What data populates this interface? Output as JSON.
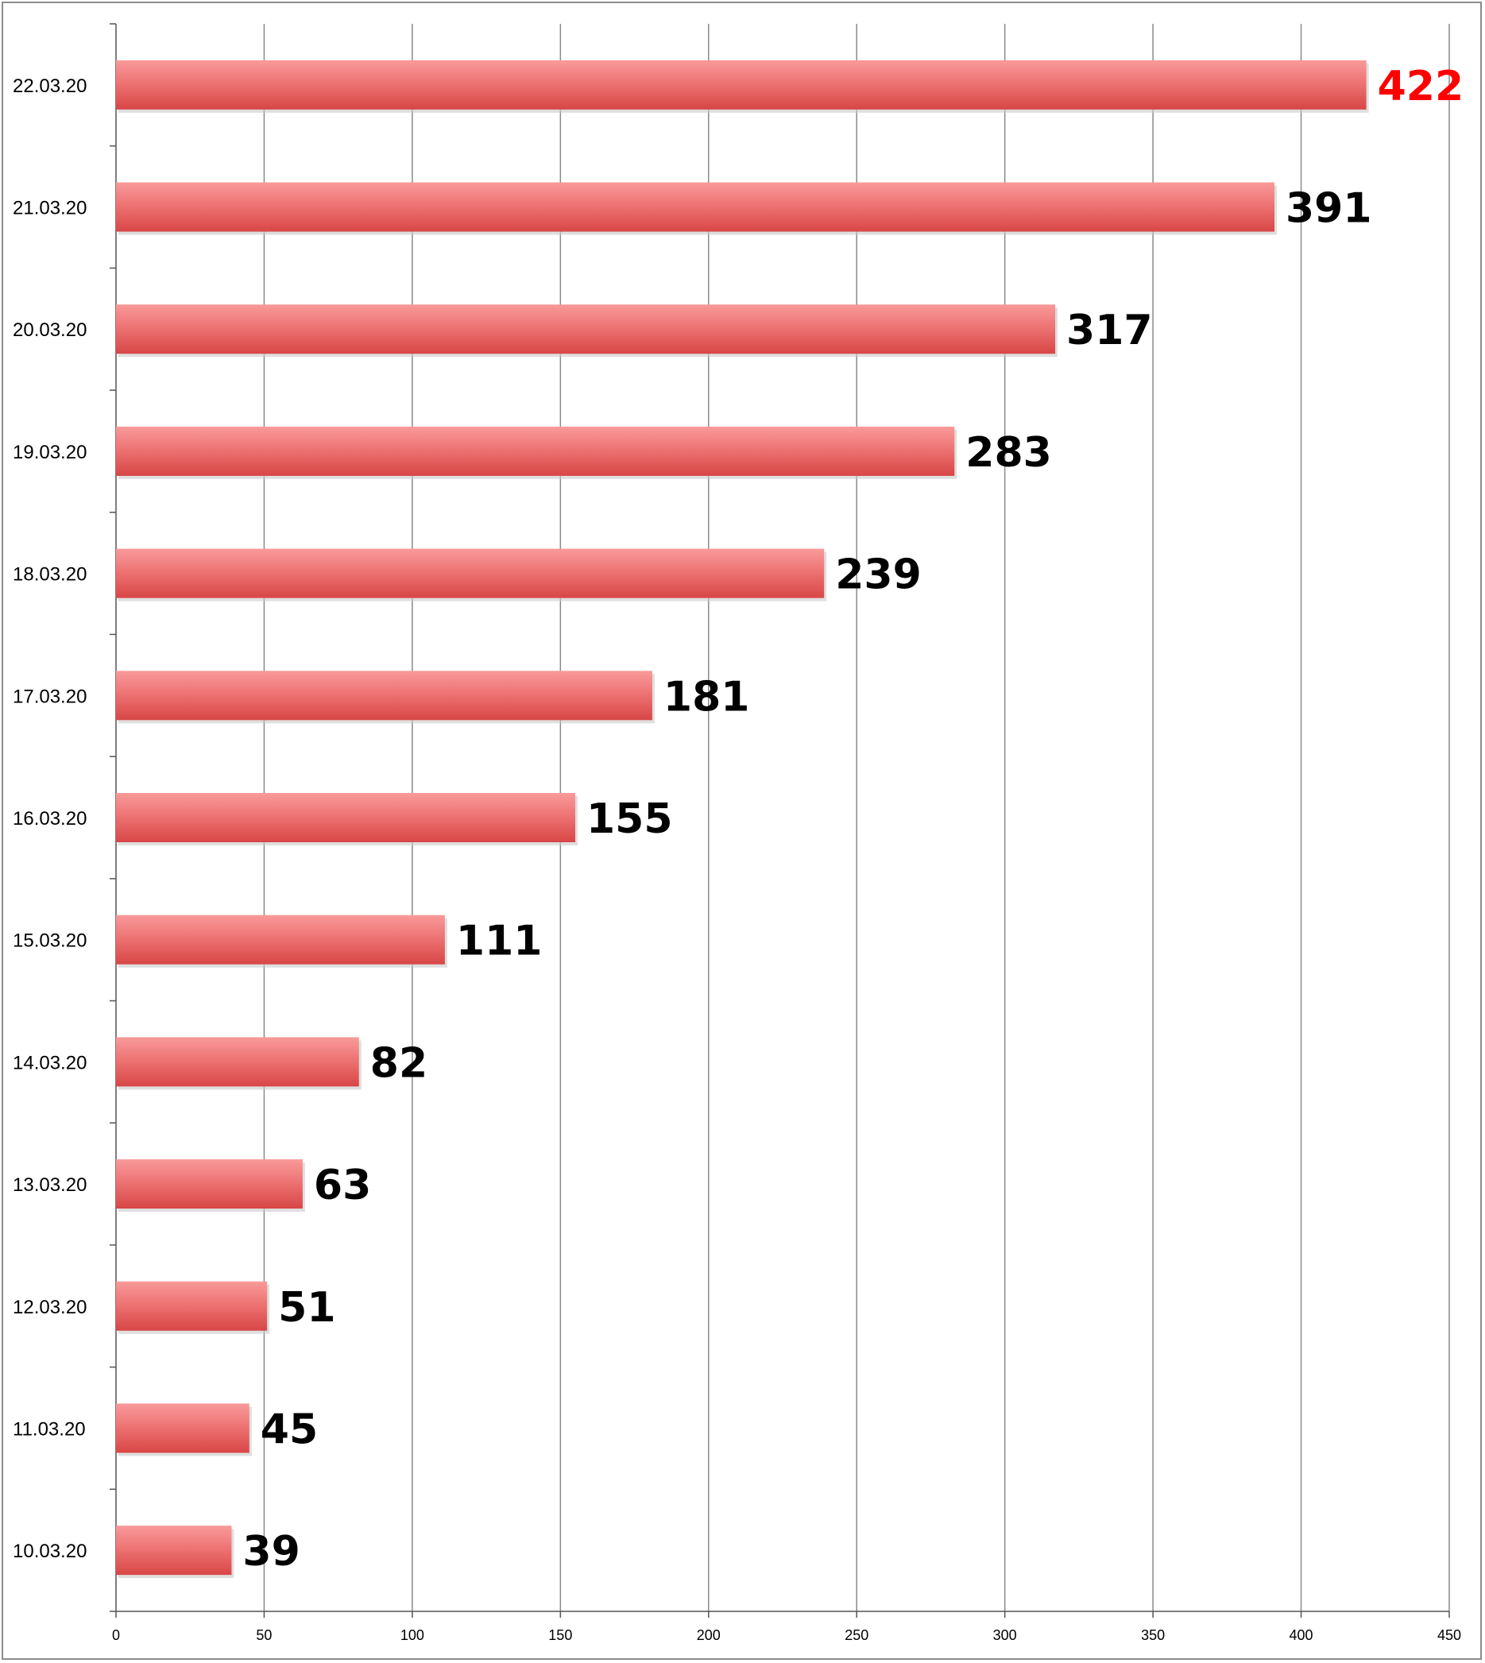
{
  "chart_data": {
    "type": "bar",
    "orientation": "horizontal",
    "categories": [
      "22.03.20",
      "21.03.20",
      "20.03.20",
      "19.03.20",
      "18.03.20",
      "17.03.20",
      "16.03.20",
      "15.03.20",
      "14.03.20",
      "13.03.20",
      "12.03.20",
      "11.03.20",
      "10.03.20"
    ],
    "values": [
      422,
      391,
      317,
      283,
      239,
      181,
      155,
      111,
      82,
      63,
      51,
      45,
      39
    ],
    "value_labels": [
      "422",
      "391",
      "317",
      "283",
      "239",
      "181",
      "155",
      "111",
      "82",
      "63",
      "51",
      "45",
      "39"
    ],
    "x_ticks": [
      "0",
      "50",
      "100",
      "150",
      "200",
      "250",
      "300",
      "350",
      "400",
      "450"
    ],
    "xlim": [
      0,
      450
    ],
    "grid": "vertical",
    "bar_color": "#e05656",
    "highlight_color": "#ff0000",
    "label_color": "#000000",
    "highlight_index": 0
  }
}
